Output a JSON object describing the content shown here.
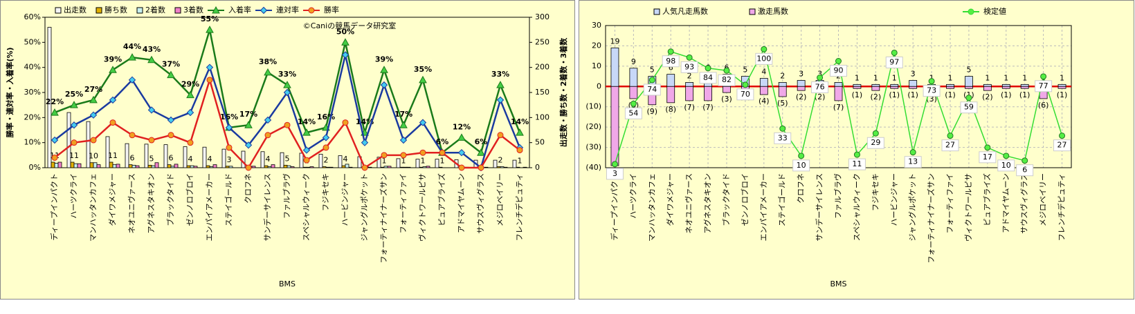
{
  "chart_data": [
    {
      "type": "combo",
      "x_label": "BMS",
      "y_label": "勝率・連対率・入着率(%)",
      "y2_label": "出走数・勝ち数・2着数・3着数",
      "watermark": "©Caniの競馬データ研究室",
      "bar_mode": "group",
      "categories": [
        "ディープインパクト",
        "ハーツクライ",
        "マンハッタンカフェ",
        "ダイワメジャー",
        "ネオユニヴァース",
        "アグネスタキオン",
        "ブラックタイド",
        "ゼンノロブロイ",
        "エンパイアメーカー",
        "ステイゴールド",
        "クロフネ",
        "サンデーサイレンス",
        "ファルブラヴ",
        "スペシャルウィーク",
        "フジキセキ",
        "ハービンジャー",
        "ジャングルポケット",
        "フォーティナイナーズサン",
        "フォーティファイ",
        "ヴィクトワールピサ",
        "ピュアブライズ",
        "アドマイヤムーン",
        "サウスヴィグラス",
        "メジロベイリー",
        "フレンチデピュティ"
      ],
      "ylim": [
        0,
        60
      ],
      "yticks": [
        {
          "value": 0,
          "label": "0%"
        },
        {
          "value": 10,
          "label": "10%"
        },
        {
          "value": 20,
          "label": "20%"
        },
        {
          "value": 30,
          "label": "30%"
        },
        {
          "value": 40,
          "label": "40%"
        },
        {
          "value": 50,
          "label": "50%"
        },
        {
          "value": 60,
          "label": "60%"
        }
      ],
      "y2lim": [
        0,
        300
      ],
      "y2ticks": [
        0,
        50,
        100,
        150,
        200,
        250,
        300
      ],
      "series": [
        {
          "name": "出走数",
          "type": "bar",
          "axis": "y2",
          "color": "#f4f4f4",
          "values": [
            280,
            110,
            92,
            62,
            48,
            47,
            46,
            42,
            41,
            37,
            33,
            32,
            30,
            29,
            27,
            24,
            22,
            21,
            18,
            17,
            17,
            16,
            15,
            15,
            15
          ]
        },
        {
          "name": "勝ち数",
          "type": "bar",
          "axis": "y2",
          "color": "#e0b000",
          "show_labels": true,
          "values": [
            11,
            11,
            10,
            11,
            6,
            5,
            6,
            4,
            4,
            3,
            0,
            4,
            5,
            1,
            2,
            4,
            0,
            1,
            1,
            1,
            1,
            0,
            0,
            2,
            1
          ]
        },
        {
          "name": "2着数",
          "type": "bar",
          "axis": "y2",
          "color": "#c8f0f0",
          "values": [
            9,
            8,
            10,
            6,
            5,
            4,
            3,
            4,
            2,
            3,
            3,
            2,
            4,
            1,
            1,
            7,
            2,
            3,
            1,
            2,
            0,
            1,
            0,
            2,
            0
          ]
        },
        {
          "name": "3着数",
          "type": "bar",
          "axis": "y2",
          "color": "#f080c8",
          "values": [
            11,
            8,
            6,
            7,
            4,
            10,
            7,
            3,
            6,
            0,
            3,
            6,
            2,
            2,
            1,
            1,
            1,
            3,
            1,
            3,
            0,
            1,
            1,
            1,
            1
          ]
        },
        {
          "name": "入着率",
          "type": "line",
          "color": "#1a7a1a",
          "marker": "triangle",
          "marker_color": "#44cc44",
          "values": [
            22,
            25,
            27,
            39,
            44,
            43,
            37,
            29,
            55,
            16,
            17,
            38,
            33,
            14,
            16,
            50,
            14,
            39,
            17,
            35,
            6,
            12,
            6,
            33,
            14
          ],
          "value_labels": [
            "22%",
            "25%",
            "27%",
            "39%",
            "44%",
            "43%",
            "37%",
            "29%",
            "55%",
            "16%",
            "17%",
            "38%",
            "33%",
            "14%",
            "16%",
            "50%",
            "14%",
            "39%",
            "17%",
            "35%",
            "6%",
            "12%",
            "6%",
            "33%",
            "14%"
          ]
        },
        {
          "name": "連対率",
          "type": "line",
          "color": "#1a3aa0",
          "marker": "diamond",
          "marker_color": "#44ccee",
          "values": [
            11,
            17,
            21,
            27,
            35,
            23,
            19,
            22,
            40,
            16,
            9,
            19,
            30,
            7,
            12,
            45,
            10,
            33,
            11,
            18,
            6,
            6,
            0,
            27,
            8
          ]
        },
        {
          "name": "勝率",
          "type": "line",
          "color": "#e02020",
          "marker": "circle",
          "marker_color": "#f0a020",
          "values": [
            4,
            10,
            11,
            18,
            13,
            11,
            13,
            10,
            35,
            8,
            0,
            13,
            17,
            3,
            8,
            18,
            0,
            5,
            5,
            6,
            6,
            0,
            0,
            13,
            7
          ]
        }
      ]
    },
    {
      "type": "combo",
      "x_label": "BMS",
      "bar_mode": "overlay",
      "grid": true,
      "zero_line_color": "#e00000",
      "categories": [
        "ディープインパクト",
        "ハーツクライ",
        "マンハッタンカフェ",
        "ダイワメジャー",
        "ネオユニヴァース",
        "アグネスタキオン",
        "ブラックタイド",
        "ゼンノロブロイ",
        "エンパイアメーカー",
        "ステイゴールド",
        "クロフネ",
        "サンデーサイレンス",
        "ファルブラヴ",
        "スペシャルウィーク",
        "フジキセキ",
        "ハービンジャー",
        "ジャングルポケット",
        "フォーティナイナーズサン",
        "フォーティファイ",
        "ヴィクトワールピサ",
        "ピュアブライズ",
        "アドマイヤムーン",
        "サウスヴィグラス",
        "メジロベイリー",
        "フレンチデピュティ"
      ],
      "ylim": [
        -40,
        30
      ],
      "yticks": [
        {
          "value": -40,
          "label": "(40)"
        },
        {
          "value": -30,
          "label": "(30)"
        },
        {
          "value": -20,
          "label": "(20)"
        },
        {
          "value": -10,
          "label": "(10)"
        },
        0,
        10,
        20,
        30
      ],
      "y2lim": [
        0,
        120
      ],
      "series": [
        {
          "name": "人気凡走馬数",
          "type": "bar",
          "color": "#c8d8f8",
          "show_labels": true,
          "label_color": "#000000",
          "values": [
            19,
            9,
            5,
            6,
            2,
            6,
            6,
            5,
            4,
            2,
            3,
            3,
            2,
            1,
            1,
            1,
            3,
            1,
            1,
            5,
            1,
            1,
            1,
            1,
            1
          ]
        },
        {
          "name": "激走馬数",
          "type": "bar",
          "color": "#f0a8e8",
          "show_labels": true,
          "label_color": "#e00000",
          "values": [
            -39,
            -6,
            -9,
            -8,
            -7,
            -7,
            -3,
            -2,
            -4,
            -5,
            -2,
            -2,
            -7,
            -1,
            -2,
            -1,
            -1,
            -3,
            -1,
            -1,
            -2,
            -1,
            -1,
            -6,
            -1
          ],
          "value_labels": [
            "(39)",
            "(6)",
            "(9)",
            "(8)",
            "(7)",
            "(7)",
            "(3)",
            "(2)",
            "(4)",
            "(5)",
            "(2)",
            "(2)",
            "(7)",
            "(1)",
            "(2)",
            "(1)",
            "(1)",
            "(3)",
            "(1)",
            "(1)",
            "(2)",
            "(1)",
            "(1)",
            "(6)",
            "(1)"
          ]
        },
        {
          "name": "検定値",
          "type": "line",
          "axis": "y2",
          "color": "#33dd33",
          "marker": "circle",
          "marker_color": "#55ee44",
          "boxed_labels": true,
          "values": [
            3,
            54,
            74,
            98,
            93,
            84,
            82,
            70,
            100,
            33,
            10,
            76,
            90,
            11,
            29,
            97,
            13,
            73,
            27,
            59,
            17,
            10,
            6,
            77,
            27
          ]
        }
      ]
    }
  ]
}
